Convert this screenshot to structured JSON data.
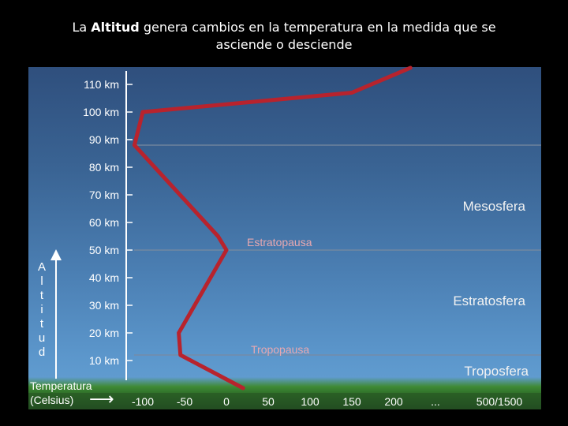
{
  "title": {
    "prefix": "La ",
    "bold": "Altitud",
    "line1_rest": " genera cambios en la temperatura en la medida que se",
    "line2": "asciende o desciende"
  },
  "y_ticks": [
    "110 km",
    "100 km",
    "90 km",
    "80 km",
    "70 km",
    "60 km",
    "50 km",
    "40 km",
    "30 km",
    "20 km",
    "10 km"
  ],
  "y_tick_values": [
    110,
    100,
    90,
    80,
    70,
    60,
    50,
    40,
    30,
    20,
    10
  ],
  "x_ticks": [
    "-100",
    "-50",
    "0",
    "50",
    "100",
    "150",
    "200",
    "...",
    "500/1500"
  ],
  "x_tick_values": [
    -100,
    -50,
    0,
    50,
    100,
    150,
    200,
    null,
    null
  ],
  "axis_labels": {
    "altitude_letters": [
      "A",
      "l",
      "t",
      "i",
      "t",
      "u",
      "d"
    ],
    "temperature": "Temperatura",
    "celsius": "(Celsius)",
    "arrow": "⟶"
  },
  "layers": {
    "mesosfera": "Mesosfera",
    "estratopausa": "Estratopausa",
    "estratosfera": "Estratosfera",
    "tropopausa": "Tropopausa",
    "troposfera": "Troposfera"
  },
  "boundaries_km": [
    88,
    50,
    12
  ],
  "temperature_profile": [
    {
      "temp": 20,
      "alt": 0
    },
    {
      "temp": -55,
      "alt": 12
    },
    {
      "temp": -57,
      "alt": 20
    },
    {
      "temp": 0,
      "alt": 50
    },
    {
      "temp": -10,
      "alt": 55
    },
    {
      "temp": -110,
      "alt": 88
    },
    {
      "temp": -100,
      "alt": 100
    },
    {
      "temp": 150,
      "alt": 107
    },
    {
      "temp": 220,
      "alt": 116
    }
  ],
  "colors": {
    "curve": "#b8232d",
    "boundary": "#7a8aa0",
    "text": "#ffffff",
    "layer_label": "#f2f2f2",
    "pause_label": "#e8a8b0"
  }
}
